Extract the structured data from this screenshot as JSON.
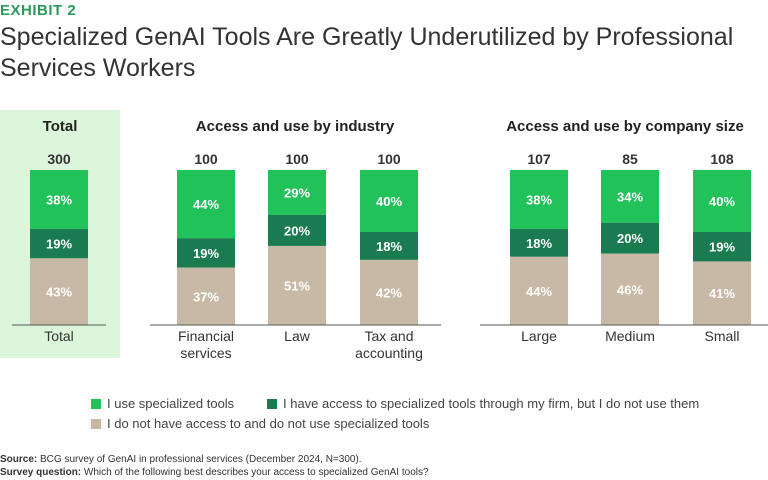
{
  "header": {
    "exhibit": "EXHIBIT 2",
    "title": "Specialized GenAI Tools Are Greatly Underutilized by Professional Services Workers"
  },
  "colors": {
    "use": "#22c25a",
    "access": "#1a7a50",
    "no_access": "#c8b9a6",
    "panel_bg": "#dcf6dc"
  },
  "chart_data": {
    "type": "bar",
    "stacked": true,
    "groups": [
      {
        "title": "Total",
        "categories": [
          "Total"
        ]
      },
      {
        "title": "Access and use by industry",
        "categories": [
          "Financial services",
          "Law",
          "Tax and accounting"
        ]
      },
      {
        "title": "Access and use by company size",
        "categories": [
          "Large",
          "Medium",
          "Small"
        ]
      }
    ],
    "categories": [
      "Total",
      "Financial services",
      "Law",
      "Tax and accounting",
      "Large",
      "Medium",
      "Small"
    ],
    "category_lines": [
      [
        "Total"
      ],
      [
        "Financial",
        "services"
      ],
      [
        "Law"
      ],
      [
        "Tax and",
        "accounting"
      ],
      [
        "Large"
      ],
      [
        "Medium"
      ],
      [
        "Small"
      ]
    ],
    "n": [
      "300",
      "100",
      "100",
      "100",
      "107",
      "85",
      "108"
    ],
    "series": [
      {
        "name": "I use specialized tools",
        "values": [
          38,
          44,
          29,
          40,
          38,
          34,
          40
        ]
      },
      {
        "name": "I have access to specialized tools through my firm, but I do not use them",
        "values": [
          19,
          19,
          20,
          18,
          18,
          20,
          19
        ]
      },
      {
        "name": "I do not have access to and do not use specialized tools",
        "values": [
          43,
          37,
          51,
          42,
          44,
          46,
          41
        ]
      }
    ],
    "value_suffix": "%",
    "ylim": [
      0,
      100
    ]
  },
  "legend": {
    "use": "I use specialized tools",
    "access": "I have access to specialized tools through my firm, but I do not use them",
    "no_access": "I do not have access to and do not use specialized tools"
  },
  "footnotes": {
    "source_label": "Source:",
    "source_text": "BCG survey of GenAI in professional services (December 2024, N=300).",
    "question_label": "Survey question:",
    "question_text": "Which of the following best describes your access to specialized GenAI tools?"
  }
}
